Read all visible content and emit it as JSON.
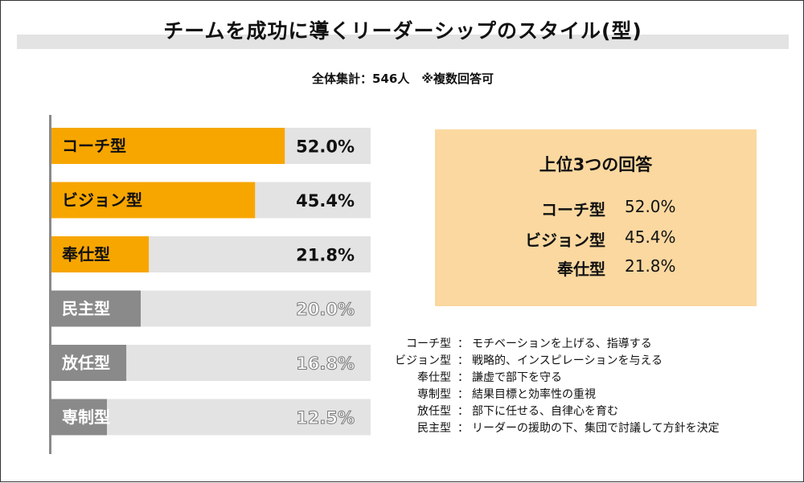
{
  "title": "チームを成功に導くリーダーシップのスタイル(型)",
  "subtitle": "全体集計：546人　※複数回答可",
  "colors": {
    "highlight": "#f7a600",
    "muted": "#8a8a8a",
    "track": "#e3e3e3",
    "panel": "#fad8a0"
  },
  "chart_data": {
    "type": "bar",
    "orientation": "horizontal",
    "categories": [
      "コーチ型",
      "ビジョン型",
      "奉仕型",
      "民主型",
      "放任型",
      "専制型"
    ],
    "values": [
      52.0,
      45.4,
      21.8,
      20.0,
      16.8,
      12.5
    ],
    "value_labels": [
      "52.0%",
      "45.4%",
      "21.8%",
      "20.0%",
      "16.8%",
      "12.5%"
    ],
    "highlighted": [
      true,
      true,
      true,
      false,
      false,
      false
    ],
    "xlim": [
      0,
      100
    ],
    "unit": "%"
  },
  "top3": {
    "title": "上位3つの回答",
    "rows": [
      {
        "name": "コーチ型",
        "value": "52.0%"
      },
      {
        "name": "ビジョン型",
        "value": "45.4%"
      },
      {
        "name": "奉仕型",
        "value": "21.8%"
      }
    ]
  },
  "legend": {
    "separator": "：",
    "items": [
      {
        "term": "コーチ型",
        "desc": "モチベーションを上げる、指導する"
      },
      {
        "term": "ビジョン型",
        "desc": "戦略的、インスピレーションを与える"
      },
      {
        "term": "奉仕型",
        "desc": "謙虚で部下を守る"
      },
      {
        "term": "専制型",
        "desc": "結果目標と効率性の重視"
      },
      {
        "term": "放任型",
        "desc": "部下に任せる、自律心を育む"
      },
      {
        "term": "民主型",
        "desc": "リーダーの援助の下、集団で討議して方針を決定"
      }
    ]
  }
}
